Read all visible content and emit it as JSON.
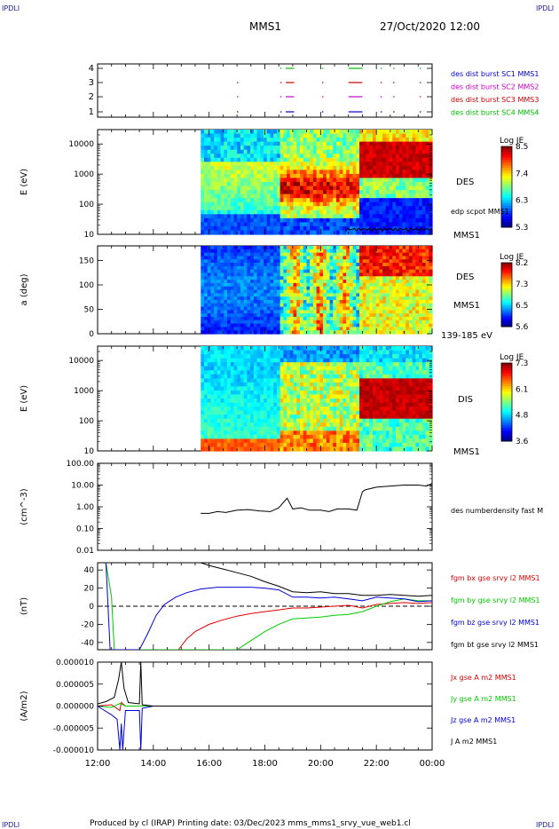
{
  "header": {
    "corner_left": "IPDLI",
    "corner_right": "IPDLI",
    "spacecraft": "MMS1",
    "date": "27/Oct/2020 12:00"
  },
  "footer": {
    "text": "Produced by cl (IRAP)   Printing date: 03/Dec/2023   mms_mms1_srvy_vue_web1.cl",
    "corner_left": "IPDLI",
    "corner_right": "IPDLI"
  },
  "time_axis": {
    "labels": [
      "12:00",
      "14:00",
      "16:00",
      "18:00",
      "20:00",
      "22:00",
      "00:00"
    ],
    "start_hour": 12,
    "end_hour": 24
  },
  "colors": {
    "mms1": "#0000cc",
    "mms2": "#cc00cc",
    "mms3": "#cc0000",
    "mms4": "#00bb00",
    "bx": "#dd0000",
    "by": "#00cc00",
    "bz": "#0000dd",
    "bt": "#000000"
  },
  "chart_data": [
    {
      "type": "event-bars",
      "ylabel": "",
      "yticks": [
        "4",
        "3",
        "2",
        "1"
      ],
      "legend": [
        "des dist burst SC1 MMS1",
        "des dist burst SC2 MMS2",
        "des dist burst SC3 MMS3",
        "des dist burst SC4 MMS4"
      ],
      "bursts": [
        {
          "level": 4,
          "color_key": "mms4",
          "intervals": [
            [
              18.55,
              18.6
            ],
            [
              18.75,
              19.05
            ],
            [
              20.05,
              20.1
            ],
            [
              21.0,
              21.5
            ],
            [
              22.15,
              22.2
            ],
            [
              22.6,
              22.65
            ],
            [
              23.55,
              23.6
            ]
          ]
        },
        {
          "level": 3,
          "color_key": "mms3",
          "intervals": [
            [
              17.0,
              17.03
            ],
            [
              18.55,
              18.6
            ],
            [
              18.75,
              19.05
            ],
            [
              20.05,
              20.1
            ],
            [
              21.0,
              21.5
            ],
            [
              22.15,
              22.2
            ],
            [
              22.6,
              22.65
            ],
            [
              23.55,
              23.6
            ]
          ]
        },
        {
          "level": 2,
          "color_key": "mms2",
          "intervals": [
            [
              17.0,
              17.03
            ],
            [
              18.55,
              18.6
            ],
            [
              18.75,
              19.05
            ],
            [
              20.05,
              20.1
            ],
            [
              21.0,
              21.5
            ],
            [
              22.15,
              22.2
            ],
            [
              22.6,
              22.65
            ],
            [
              23.55,
              23.6
            ]
          ]
        },
        {
          "level": 1,
          "color_key": "mms1",
          "intervals": [
            [
              17.0,
              17.03
            ],
            [
              18.55,
              18.6
            ],
            [
              18.75,
              19.05
            ],
            [
              20.05,
              20.1
            ],
            [
              21.0,
              21.5
            ],
            [
              22.15,
              22.2
            ],
            [
              22.6,
              22.65
            ],
            [
              23.55,
              23.6
            ]
          ]
        }
      ]
    },
    {
      "type": "heatmap",
      "ylabel": "E (eV)",
      "yticks": [
        "10000",
        "1000",
        "100",
        "10"
      ],
      "yscale": "log",
      "ylim": [
        10,
        30000
      ],
      "data_start_hour": 15.7,
      "right_labels": [
        "DES",
        "edp scpot MMS1",
        "MMS1"
      ],
      "colorbar": {
        "title": "Log JE",
        "ticks": [
          "8.5",
          "7.4",
          "6.3",
          "5.3"
        ]
      }
    },
    {
      "type": "heatmap",
      "ylabel": "a (deg)",
      "yticks": [
        "150",
        "100",
        "50",
        "0"
      ],
      "ylim": [
        0,
        180
      ],
      "data_start_hour": 15.7,
      "right_labels": [
        "DES",
        "MMS1",
        "139-185 eV"
      ],
      "colorbar": {
        "title": "Log JE",
        "ticks": [
          "8.2",
          "7.3",
          "6.5",
          "5.6"
        ]
      }
    },
    {
      "type": "heatmap",
      "ylabel": "E (eV)",
      "yticks": [
        "10000",
        "1000",
        "100",
        "10"
      ],
      "yscale": "log",
      "ylim": [
        10,
        30000
      ],
      "data_start_hour": 15.7,
      "right_labels": [
        "DIS",
        "MMS1"
      ],
      "colorbar": {
        "title": "Log JE",
        "ticks": [
          "7.3",
          "6.1",
          "4.8",
          "3.6"
        ]
      }
    },
    {
      "type": "line",
      "ylabel": "(cm^-3)",
      "yticks": [
        "100.00",
        "10.00",
        "1.00",
        "0.10",
        "0.01"
      ],
      "yscale": "log",
      "ylim": [
        0.01,
        100
      ],
      "legend": [
        "des numberdensity fast M"
      ],
      "series": [
        {
          "name": "des numberdensity fast M",
          "color_key": "bt",
          "x": [
            15.7,
            16.0,
            16.3,
            16.6,
            17.0,
            17.4,
            17.8,
            18.2,
            18.5,
            18.8,
            19.0,
            19.3,
            19.6,
            20.0,
            20.3,
            20.6,
            21.0,
            21.3,
            21.5,
            21.6,
            22.0,
            22.5,
            23.0,
            23.5,
            23.8,
            24.0
          ],
          "y": [
            0.5,
            0.5,
            0.6,
            0.55,
            0.7,
            0.75,
            0.65,
            0.6,
            0.9,
            2.5,
            0.8,
            0.9,
            0.7,
            0.7,
            0.6,
            0.8,
            0.8,
            0.7,
            5.0,
            6.0,
            8.0,
            9.0,
            10.0,
            10.0,
            9.0,
            12.0
          ]
        }
      ]
    },
    {
      "type": "line",
      "ylabel": "(nT)",
      "yticks": [
        "40",
        "20",
        "0",
        "-20",
        "-40"
      ],
      "ylim": [
        -48,
        48
      ],
      "legend": [
        "fgm bx gse srvy l2 MMS1",
        "fgm by gse srvy l2 MMS1",
        "fgm bz gse srvy l2 MMS1",
        "fgm bt gse srvy l2 MMS1"
      ],
      "series": [
        {
          "name": "fgm bx gse srvy l2 MMS1",
          "color_key": "bx",
          "x": [
            14.9,
            15.2,
            15.5,
            16.0,
            16.5,
            17.0,
            17.5,
            18.0,
            18.5,
            19.0,
            19.5,
            20.0,
            20.5,
            21.0,
            21.5,
            22.0,
            22.5,
            23.0,
            23.5,
            24.0
          ],
          "y": [
            -48,
            -36,
            -28,
            -20,
            -15,
            -11,
            -8,
            -6,
            -4,
            -2,
            -2,
            -1,
            0,
            1,
            -2,
            2,
            3,
            4,
            3,
            4
          ]
        },
        {
          "name": "fgm by gse srvy l2 MMS1",
          "color_key": "by",
          "x": [
            12.3,
            12.5,
            12.6,
            17.0,
            17.5,
            18.0,
            18.5,
            19.0,
            19.5,
            20.0,
            20.5,
            21.0,
            21.5,
            22.0,
            22.5,
            23.0,
            23.5,
            24.0
          ],
          "y": [
            48,
            10,
            -48,
            -48,
            -38,
            -28,
            -20,
            -14,
            -13,
            -12,
            -10,
            -9,
            -6,
            0,
            5,
            8,
            6,
            6
          ]
        },
        {
          "name": "fgm bz gse srvy l2 MMS1",
          "color_key": "bz",
          "x": [
            12.3,
            12.45,
            13.5,
            13.8,
            14.1,
            14.4,
            14.8,
            15.2,
            15.7,
            16.3,
            17.0,
            17.5,
            18.0,
            18.5,
            19.0,
            19.5,
            20.0,
            20.5,
            21.0,
            21.5,
            22.0,
            22.5,
            23.0,
            23.5,
            24.0
          ],
          "y": [
            48,
            -48,
            -48,
            -30,
            -10,
            2,
            10,
            15,
            19,
            21,
            21,
            21,
            20,
            18,
            10,
            10,
            9,
            10,
            8,
            6,
            10,
            9,
            8,
            5,
            6
          ]
        },
        {
          "name": "fgm bt gse srvy l2 MMS1",
          "color_key": "bt",
          "x": [
            15.7,
            16.0,
            16.5,
            17.0,
            17.5,
            18.0,
            18.5,
            19.0,
            19.5,
            20.0,
            20.5,
            21.0,
            21.5,
            22.0,
            22.5,
            23.0,
            23.5,
            24.0
          ],
          "y": [
            48,
            45,
            41,
            37,
            33,
            27,
            22,
            16,
            15,
            16,
            14,
            14,
            12,
            12,
            13,
            12,
            11,
            12
          ]
        }
      ]
    },
    {
      "type": "line",
      "ylabel": "(A/m2)",
      "yticks": [
        "0.000010",
        "0.000005",
        "0.000000",
        "-0.000005",
        "-0.000010"
      ],
      "ylim": [
        -1e-05,
        1e-05
      ],
      "legend": [
        "Jx gse A m2 MMS1",
        "Jy gse A m2 MMS1",
        "Jz gse A m2 MMS1",
        "J A m2 MMS1"
      ],
      "series": [
        {
          "name": "Jx gse A m2 MMS1",
          "color_key": "bx",
          "x": [
            12.0,
            12.5,
            12.8,
            12.85,
            13.0,
            13.5,
            14.0,
            24.0
          ],
          "y": [
            0.0,
            3e-07,
            -1e-06,
            8e-07,
            0.0,
            0.0,
            0.0,
            0.0
          ]
        },
        {
          "name": "Jy gse A m2 MMS1",
          "color_key": "by",
          "x": [
            12.0,
            12.5,
            12.8,
            13.0,
            14.0,
            24.0
          ],
          "y": [
            0.0,
            -3e-07,
            6e-07,
            0.0,
            0.0,
            0.0
          ]
        },
        {
          "name": "Jz gse A m2 MMS1",
          "color_key": "bz",
          "x": [
            12.0,
            12.2,
            12.5,
            12.7,
            12.8,
            12.85,
            12.9,
            13.0,
            13.5,
            13.55,
            13.6,
            14.0,
            24.0
          ],
          "y": [
            0.0,
            -8e-07,
            -2e-06,
            -3e-06,
            -1e-05,
            -4e-06,
            -1e-05,
            -1e-06,
            -1e-06,
            -1e-05,
            -5e-07,
            0.0,
            0.0
          ]
        },
        {
          "name": "J A m2 MMS1",
          "color_key": "bt",
          "x": [
            12.0,
            12.3,
            12.6,
            12.75,
            12.85,
            12.95,
            13.1,
            13.5,
            13.55,
            13.6,
            14.0,
            24.0
          ],
          "y": [
            5e-07,
            1e-06,
            2e-06,
            6e-06,
            1e-05,
            4e-06,
            8e-07,
            5e-07,
            1e-05,
            3e-07,
            0.0,
            0.0
          ]
        }
      ]
    }
  ]
}
